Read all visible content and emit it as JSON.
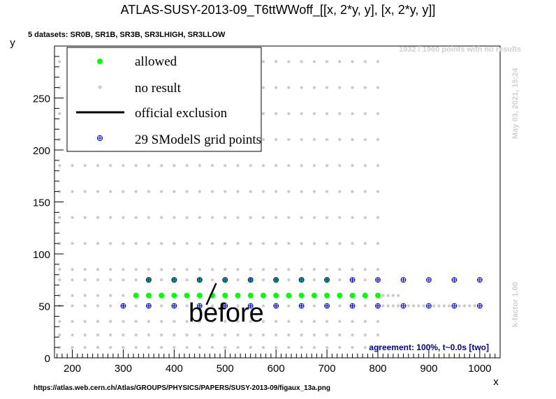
{
  "chart_data": {
    "type": "scatter",
    "title": "ATLAS-SUSY-2013-09_T6ttWWoff_[[x, 2*y, y], [x, 2*y, y]]",
    "subtitle": "5 datasets: SR0B, SR1B, SR3B, SR3LHIGH, SR3LLOW",
    "xlabel": "x",
    "ylabel": "y",
    "xlim": [
      165,
      1040
    ],
    "ylim": [
      0,
      300
    ],
    "xticks": [
      "200",
      "300",
      "400",
      "500",
      "600",
      "700",
      "800",
      "900",
      "1000"
    ],
    "yticks": [
      "0",
      "50",
      "100",
      "150",
      "200",
      "250"
    ],
    "legend_position": "top-left",
    "legend": [
      {
        "label": "allowed",
        "marker": "green-dot"
      },
      {
        "label": "no result",
        "marker": "grey-dot"
      },
      {
        "label": "official exclusion",
        "marker": "black-line"
      },
      {
        "label": "29 SModelS grid points",
        "marker": "blue-open-cross"
      }
    ],
    "series": [
      {
        "name": "allowed",
        "color": "#00ff00",
        "points": [
          [
            325,
            60
          ],
          [
            350,
            60
          ],
          [
            375,
            60
          ],
          [
            400,
            60
          ],
          [
            425,
            60
          ],
          [
            450,
            60
          ],
          [
            475,
            60
          ],
          [
            500,
            60
          ],
          [
            525,
            60
          ],
          [
            550,
            60
          ],
          [
            575,
            60
          ],
          [
            600,
            60
          ],
          [
            625,
            60
          ],
          [
            650,
            60
          ],
          [
            675,
            60
          ],
          [
            700,
            60
          ],
          [
            725,
            60
          ],
          [
            750,
            60
          ],
          [
            775,
            60
          ],
          [
            800,
            60
          ],
          [
            350,
            75
          ],
          [
            400,
            75
          ],
          [
            450,
            75
          ],
          [
            500,
            75
          ],
          [
            550,
            75
          ],
          [
            600,
            75
          ],
          [
            650,
            75
          ],
          [
            700,
            75
          ]
        ]
      },
      {
        "name": "29 SModelS grid points",
        "color": "#0000cc",
        "points": [
          [
            300,
            50
          ],
          [
            350,
            50
          ],
          [
            400,
            50
          ],
          [
            450,
            50
          ],
          [
            500,
            50
          ],
          [
            550,
            50
          ],
          [
            600,
            50
          ],
          [
            650,
            50
          ],
          [
            700,
            50
          ],
          [
            750,
            50
          ],
          [
            800,
            50
          ],
          [
            850,
            50
          ],
          [
            900,
            50
          ],
          [
            950,
            50
          ],
          [
            1000,
            50
          ],
          [
            350,
            75
          ],
          [
            400,
            75
          ],
          [
            450,
            75
          ],
          [
            500,
            75
          ],
          [
            550,
            75
          ],
          [
            600,
            75
          ],
          [
            650,
            75
          ],
          [
            700,
            75
          ],
          [
            750,
            75
          ],
          [
            800,
            75
          ],
          [
            850,
            75
          ],
          [
            900,
            75
          ],
          [
            950,
            75
          ],
          [
            1000,
            75
          ]
        ]
      },
      {
        "name": "no result",
        "color": "#cccccc",
        "x_grid": [
          175,
          800,
          25
        ],
        "y_values": [
          10,
          22,
          35,
          50,
          60,
          75,
          85,
          110,
          135,
          160,
          185,
          210,
          235,
          260,
          285
        ],
        "extra_points": [
          [
            810,
            50
          ],
          [
            820,
            50
          ],
          [
            830,
            50
          ],
          [
            840,
            50
          ],
          [
            860,
            50
          ],
          [
            870,
            50
          ],
          [
            880,
            50
          ],
          [
            890,
            50
          ],
          [
            910,
            50
          ],
          [
            920,
            50
          ],
          [
            930,
            50
          ],
          [
            940,
            50
          ],
          [
            960,
            50
          ],
          [
            970,
            50
          ],
          [
            980,
            50
          ],
          [
            990,
            50
          ],
          [
            810,
            60
          ],
          [
            820,
            60
          ],
          [
            830,
            60
          ],
          [
            840,
            60
          ]
        ]
      }
    ],
    "annotations": {
      "points_no_results": "1932 / 1960 points with no results",
      "date": "May 03, 2021, 15:24",
      "kfactor": "k-factor 1.00",
      "agreement": "agreement: 100%, t~0.0s [two]",
      "handwritten": "before",
      "url": "https://atlas.web.cern.ch/Atlas/GROUPS/PHYSICS/PAPERS/SUSY-2013-09/figaux_13a.png"
    },
    "colors": {
      "allowed": "#00ff00",
      "no_result": "#cccccc",
      "grid_points": "#0000cc",
      "agreement": "#000080",
      "side_text": "#cfcfcf"
    }
  }
}
